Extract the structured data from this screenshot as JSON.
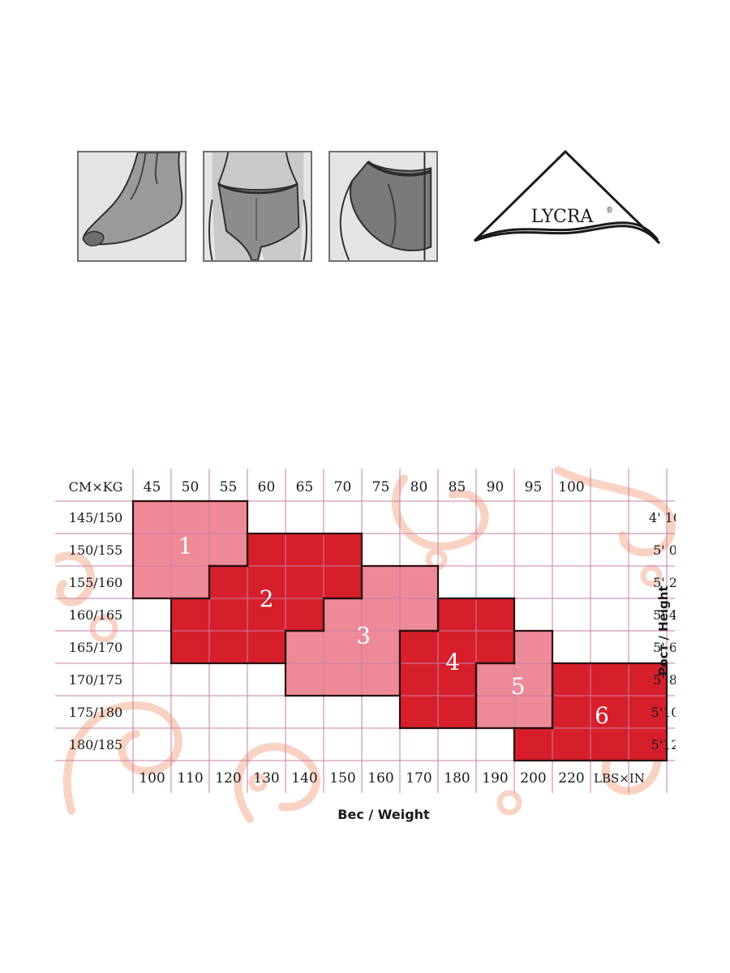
{
  "icons": [
    {
      "name": "foot-toe-icon"
    },
    {
      "name": "panty-front-icon"
    },
    {
      "name": "panty-back-icon"
    }
  ],
  "logo": {
    "text": "LYCRA",
    "mark": "®"
  },
  "chart_data": {
    "type": "table",
    "corner_label_left": "CM×KG",
    "corner_label_right": "LBS×IN",
    "kg": [
      "45",
      "50",
      "55",
      "60",
      "65",
      "70",
      "75",
      "80",
      "85",
      "90",
      "95",
      "100"
    ],
    "lbs": [
      "100",
      "110",
      "120",
      "130",
      "140",
      "150",
      "160",
      "170",
      "180",
      "190",
      "200",
      "220"
    ],
    "cm": [
      "145/150",
      "150/155",
      "155/160",
      "160/165",
      "165/170",
      "170/175",
      "175/180",
      "180/185"
    ],
    "inches": [
      "4' 10",
      "5' 0",
      "5' 2",
      "5' 4",
      "5' 6",
      "5' 8",
      "5'10",
      "5'12"
    ],
    "xlabel": "Вес / Weight",
    "ylabel": "Рост / Height",
    "colors": {
      "light": "#ee8a98",
      "dark": "#d71f2b",
      "grid": "#c87fa6",
      "ornament": "#f8d3c4"
    },
    "sizes": [
      {
        "label": "1",
        "shade": "light",
        "cells": [
          [
            0,
            0
          ],
          [
            0,
            1
          ],
          [
            0,
            2
          ],
          [
            1,
            0
          ],
          [
            1,
            1
          ],
          [
            1,
            2
          ],
          [
            2,
            0
          ],
          [
            2,
            1
          ]
        ]
      },
      {
        "label": "2",
        "shade": "dark",
        "cells": [
          [
            1,
            3
          ],
          [
            1,
            4
          ],
          [
            1,
            5
          ],
          [
            2,
            2
          ],
          [
            2,
            3
          ],
          [
            2,
            4
          ],
          [
            2,
            5
          ],
          [
            3,
            1
          ],
          [
            3,
            2
          ],
          [
            3,
            3
          ],
          [
            3,
            4
          ],
          [
            4,
            1
          ],
          [
            4,
            2
          ],
          [
            4,
            3
          ]
        ]
      },
      {
        "label": "3",
        "shade": "light",
        "cells": [
          [
            2,
            6
          ],
          [
            2,
            7
          ],
          [
            3,
            5
          ],
          [
            3,
            6
          ],
          [
            3,
            7
          ],
          [
            4,
            4
          ],
          [
            4,
            5
          ],
          [
            4,
            6
          ],
          [
            5,
            4
          ],
          [
            5,
            5
          ],
          [
            5,
            6
          ]
        ]
      },
      {
        "label": "4",
        "shade": "dark",
        "cells": [
          [
            3,
            8
          ],
          [
            3,
            9
          ],
          [
            4,
            7
          ],
          [
            4,
            8
          ],
          [
            4,
            9
          ],
          [
            5,
            7
          ],
          [
            5,
            8
          ],
          [
            6,
            7
          ],
          [
            6,
            8
          ]
        ]
      },
      {
        "label": "5",
        "shade": "light",
        "cells": [
          [
            4,
            10
          ],
          [
            5,
            9
          ],
          [
            5,
            10
          ],
          [
            6,
            9
          ],
          [
            6,
            10
          ]
        ]
      },
      {
        "label": "6",
        "shade": "dark",
        "cells": [
          [
            5,
            11
          ],
          [
            5,
            12
          ],
          [
            5,
            13
          ],
          [
            6,
            11
          ],
          [
            6,
            12
          ],
          [
            6,
            13
          ],
          [
            7,
            10
          ],
          [
            7,
            11
          ],
          [
            7,
            12
          ],
          [
            7,
            13
          ]
        ]
      }
    ]
  }
}
